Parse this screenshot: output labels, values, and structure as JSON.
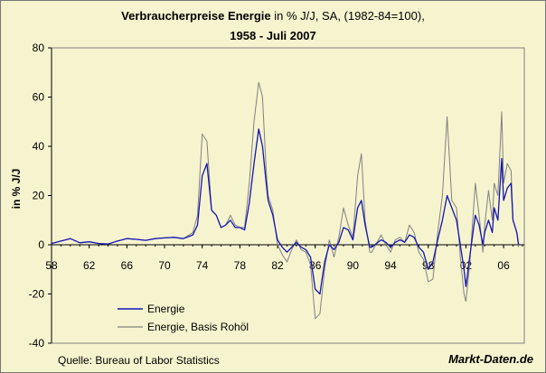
{
  "title": {
    "bold_part": "Verbraucherpreise Energie",
    "rest": " in % J/J, SA, (1982-84=100),",
    "line2": "1958 - Juli 2007"
  },
  "source": "Quelle: Bureau of Labor Statistics",
  "brand": "Markt-Daten.de",
  "colors": {
    "background": "#f6f4cf",
    "energie": "#1414b4",
    "rohoel": "#808080",
    "axis": "#000000"
  },
  "chart_data": {
    "type": "line",
    "title": "Verbraucherpreise Energie in % J/J, SA, (1982-84=100), 1958 - Juli 2007",
    "xlabel": "",
    "ylabel": "in % J/J",
    "xlim": [
      1958,
      2008.2
    ],
    "ylim": [
      -40,
      80
    ],
    "yticks": [
      -40,
      -20,
      0,
      20,
      40,
      60,
      80
    ],
    "xticks": [
      1958,
      1962,
      1966,
      1970,
      1974,
      1978,
      1982,
      1986,
      1990,
      1994,
      1998,
      2002,
      2006
    ],
    "xtick_labels": [
      "58",
      "62",
      "66",
      "70",
      "74",
      "78",
      "82",
      "86",
      "90",
      "94",
      "98",
      "02",
      "06"
    ],
    "legend": [
      "Energie",
      "Energie, Basis Rohöl"
    ],
    "series": [
      {
        "name": "Energie",
        "x": [
          1958,
          1959,
          1960,
          1961,
          1962,
          1963,
          1964,
          1965,
          1966,
          1967,
          1968,
          1969,
          1970,
          1971,
          1972,
          1973,
          1973.5,
          1974,
          1974.5,
          1975,
          1975.5,
          1976,
          1976.5,
          1977,
          1977.5,
          1978,
          1978.5,
          1979,
          1979.5,
          1980,
          1980.4,
          1980.8,
          1981,
          1981.5,
          1982,
          1982.5,
          1983,
          1983.5,
          1984,
          1984.5,
          1985,
          1985.5,
          1986,
          1986.5,
          1987,
          1987.5,
          1988,
          1988.5,
          1989,
          1989.5,
          1990,
          1990.5,
          1990.9,
          1991.3,
          1991.8,
          1992,
          1993,
          1993.5,
          1994,
          1994.5,
          1995,
          1995.5,
          1996,
          1996.5,
          1997,
          1997.5,
          1998,
          1998.5,
          1999,
          1999.5,
          2000,
          2000.5,
          2001,
          2001.4,
          2001.8,
          2002,
          2002.4,
          2003,
          2003.4,
          2003.8,
          2004,
          2004.4,
          2004.8,
          2005,
          2005.4,
          2005.8,
          2006,
          2006.4,
          2006.8,
          2007,
          2007.4,
          2007.6
        ],
        "values": [
          0.5,
          1.5,
          2.5,
          0.8,
          1.2,
          0.5,
          0.3,
          1.5,
          2.5,
          2.2,
          1.8,
          2.5,
          2.8,
          3.0,
          2.5,
          4,
          8,
          28,
          33,
          14,
          12,
          7,
          8,
          10,
          7,
          7,
          6,
          17,
          33,
          47,
          40,
          25,
          18,
          12,
          2,
          -1,
          -3,
          -1,
          1,
          -1,
          -2,
          -5,
          -18,
          -20,
          -7,
          0,
          -2,
          1,
          7,
          6,
          2,
          15,
          18,
          8,
          -1,
          -1,
          2,
          1,
          -1,
          1,
          2,
          1,
          4,
          3,
          -1,
          -3,
          -10,
          -7,
          2,
          10,
          20,
          15,
          10,
          0,
          -10,
          -17,
          -5,
          12,
          8,
          0,
          5,
          10,
          5,
          15,
          10,
          35,
          18,
          23,
          25,
          10,
          5,
          0
        ]
      },
      {
        "name": "Energie, Basis Rohöl",
        "x": [
          1958,
          1959,
          1960,
          1961,
          1962,
          1963,
          1964,
          1965,
          1966,
          1967,
          1968,
          1969,
          1970,
          1971,
          1972,
          1973,
          1973.5,
          1974,
          1974.5,
          1975,
          1975.5,
          1976,
          1976.5,
          1977,
          1977.5,
          1978,
          1978.5,
          1979,
          1979.5,
          1980,
          1980.4,
          1980.8,
          1981,
          1981.5,
          1982,
          1982.5,
          1983,
          1983.5,
          1984,
          1984.5,
          1985,
          1985.5,
          1986,
          1986.5,
          1987,
          1987.5,
          1988,
          1988.5,
          1989,
          1989.5,
          1990,
          1990.5,
          1990.9,
          1991.3,
          1991.8,
          1992,
          1993,
          1993.5,
          1994,
          1994.5,
          1995,
          1995.5,
          1996,
          1996.5,
          1997,
          1997.5,
          1998,
          1998.5,
          1999,
          1999.5,
          2000,
          2000.5,
          2001,
          2001.4,
          2001.8,
          2002,
          2002.4,
          2003,
          2003.4,
          2003.8,
          2004,
          2004.4,
          2004.8,
          2005,
          2005.4,
          2005.8,
          2006,
          2006.4,
          2006.8,
          2007,
          2007.4,
          2007.6
        ],
        "values": [
          0.5,
          1.5,
          2.5,
          0.8,
          1.2,
          0.5,
          0.3,
          1.5,
          2.5,
          2.2,
          1.8,
          2.5,
          2.8,
          3.0,
          2.5,
          5,
          12,
          45,
          42,
          14,
          12,
          7,
          8,
          12,
          8,
          7,
          7,
          25,
          50,
          66,
          60,
          30,
          20,
          14,
          0,
          -4,
          -7,
          -2,
          2,
          -2,
          -3,
          -8,
          -30,
          -28,
          -10,
          2,
          -5,
          3,
          15,
          8,
          3,
          28,
          37,
          10,
          -3,
          -3,
          4,
          0,
          -3,
          2,
          3,
          1,
          8,
          5,
          -3,
          -6,
          -15,
          -14,
          5,
          20,
          52,
          18,
          15,
          -5,
          -20,
          -23,
          -8,
          25,
          12,
          -3,
          8,
          22,
          10,
          25,
          20,
          54,
          25,
          33,
          30,
          10,
          5,
          -1
        ]
      }
    ]
  }
}
